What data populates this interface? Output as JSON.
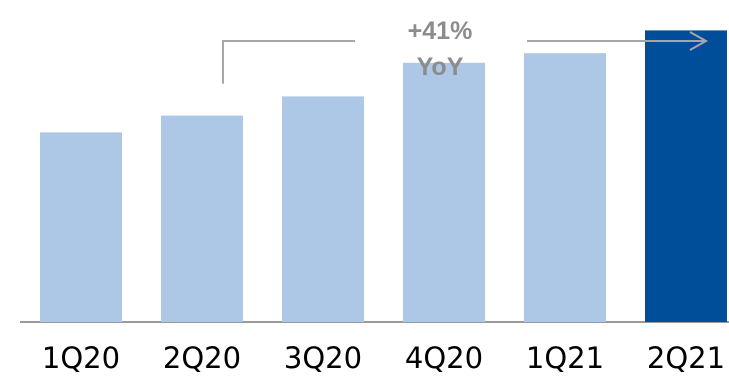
{
  "chart_data": {
    "type": "bar",
    "categories": [
      "1Q20",
      "2Q20",
      "3Q20",
      "4Q20",
      "1Q21",
      "2Q21"
    ],
    "values": [
      158,
      172,
      188,
      216,
      224,
      243
    ],
    "ylim": [
      0,
      250
    ],
    "grid": false,
    "legend": "none",
    "annotation": {
      "line1": "+41%",
      "line2": "YoY",
      "from_category": "2Q20",
      "to_category": "2Q21"
    },
    "colors": {
      "bar": "#adc8e6",
      "highlight_bar": "#004d99",
      "highlight_category": "2Q21",
      "baseline": "#9a9a9a",
      "annotation": "#8c8c8c"
    }
  }
}
